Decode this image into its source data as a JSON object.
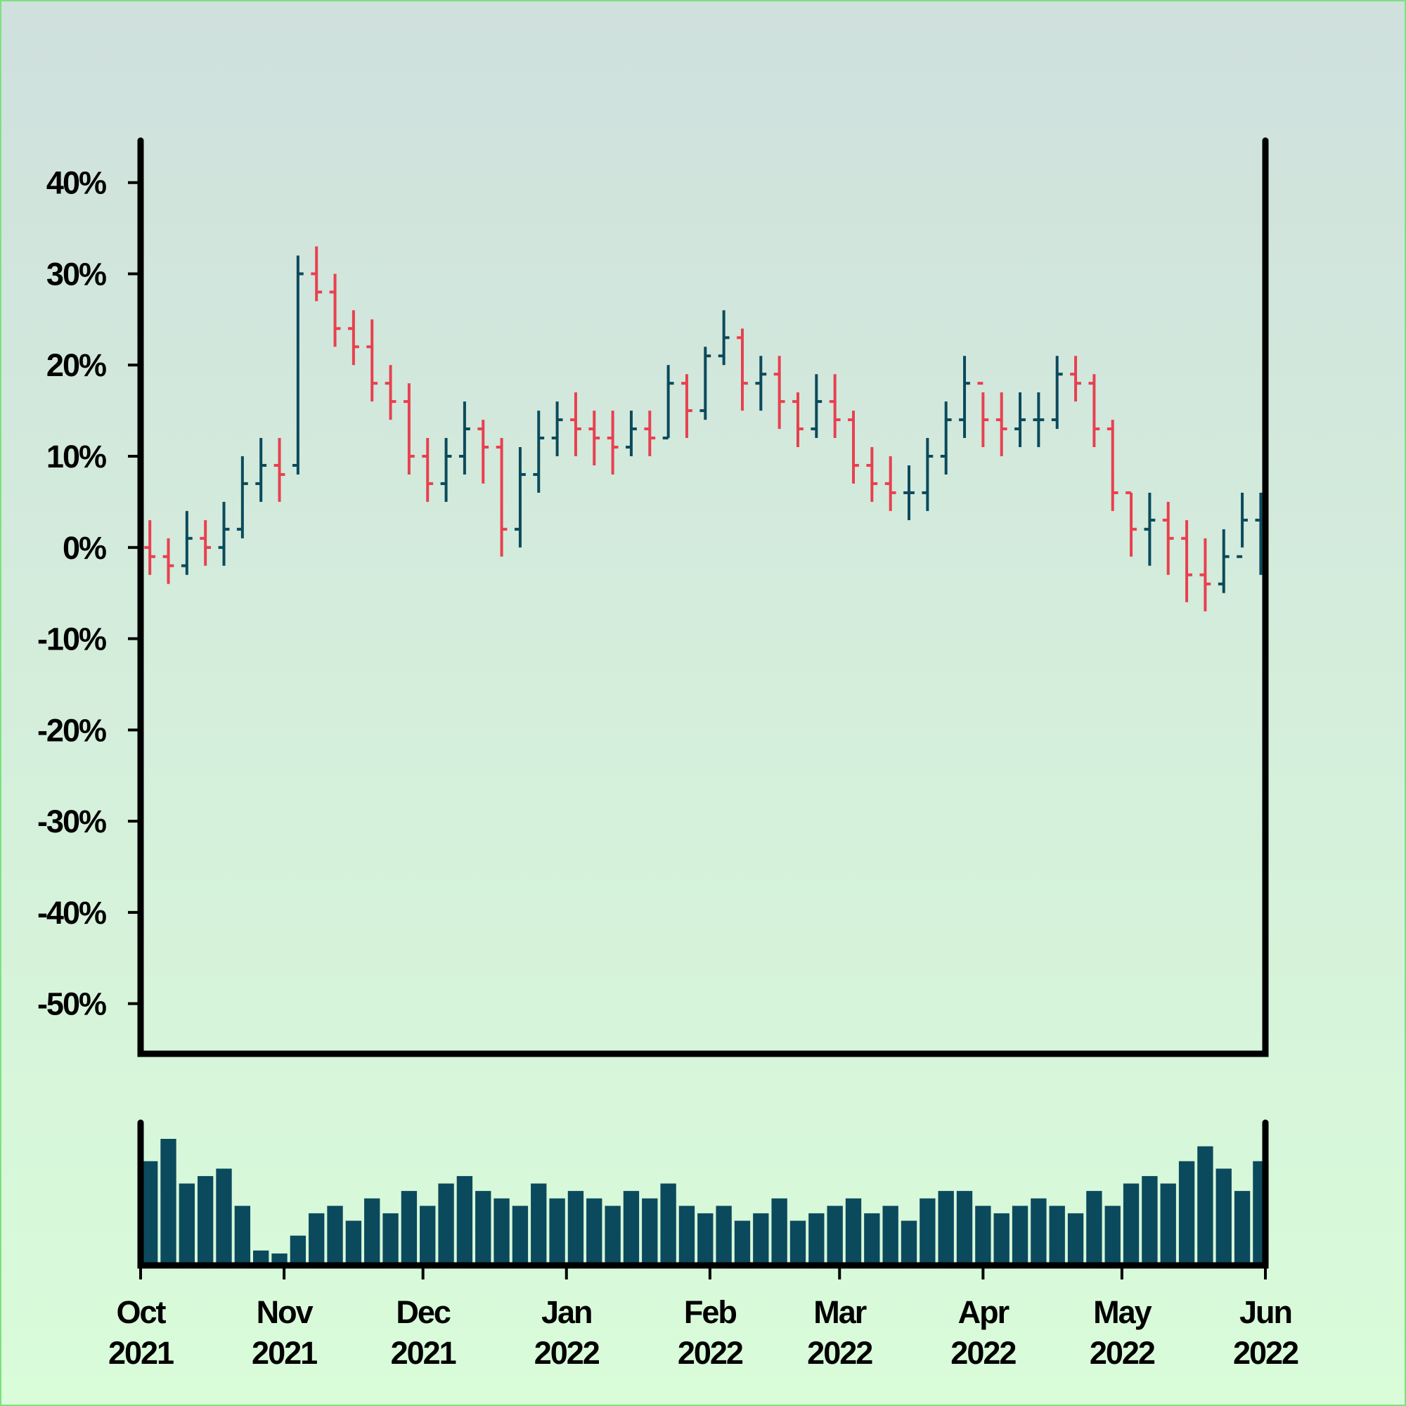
{
  "chart_data": {
    "type": "ohlc",
    "x": [
      "2021-10-01",
      "2021-10-05",
      "2021-10-09",
      "2021-10-13",
      "2021-10-17",
      "2021-10-21",
      "2021-10-25",
      "2021-10-29",
      "2021-11-02",
      "2021-11-06",
      "2021-11-10",
      "2021-11-14",
      "2021-11-18",
      "2021-11-22",
      "2021-11-26",
      "2021-11-30",
      "2021-12-04",
      "2021-12-08",
      "2021-12-12",
      "2021-12-16",
      "2021-12-20",
      "2021-12-24",
      "2021-12-28",
      "2022-01-01",
      "2022-01-05",
      "2022-01-09",
      "2022-01-13",
      "2022-01-17",
      "2022-01-21",
      "2022-01-25",
      "2022-01-29",
      "2022-02-02",
      "2022-02-06",
      "2022-02-10",
      "2022-02-14",
      "2022-02-18",
      "2022-02-22",
      "2022-02-26",
      "2022-03-02",
      "2022-03-06",
      "2022-03-10",
      "2022-03-14",
      "2022-03-18",
      "2022-03-22",
      "2022-03-26",
      "2022-03-30",
      "2022-04-03",
      "2022-04-07",
      "2022-04-11",
      "2022-04-15",
      "2022-04-19",
      "2022-04-23",
      "2022-04-27",
      "2022-05-01",
      "2022-05-05",
      "2022-05-09",
      "2022-05-13",
      "2022-05-17",
      "2022-05-21",
      "2022-05-25",
      "2022-05-29"
    ],
    "open": [
      0,
      -1,
      -2,
      1,
      0,
      2,
      7,
      9,
      9,
      30,
      28,
      24,
      22,
      18,
      16,
      10,
      7,
      10,
      13,
      11,
      2,
      8,
      12,
      14,
      13,
      12,
      11,
      13,
      12,
      18,
      15,
      21,
      23,
      18,
      19,
      16,
      13,
      16,
      14,
      9,
      7,
      6,
      6,
      10,
      14,
      18,
      14,
      13,
      14,
      14,
      19,
      18,
      13,
      6,
      2,
      3,
      1,
      -3,
      -4,
      -1,
      3
    ],
    "close": [
      -1,
      -2,
      1,
      0,
      2,
      7,
      9,
      8,
      30,
      28,
      24,
      22,
      18,
      16,
      10,
      7,
      10,
      13,
      11,
      2,
      8,
      12,
      14,
      13,
      12,
      11,
      13,
      12,
      18,
      15,
      21,
      23,
      18,
      19,
      16,
      13,
      16,
      14,
      9,
      7,
      6,
      6,
      10,
      14,
      18,
      14,
      13,
      14,
      14,
      19,
      18,
      13,
      6,
      2,
      3,
      1,
      -3,
      -4,
      -1,
      3,
      3
    ],
    "high": [
      3,
      1,
      4,
      3,
      5,
      10,
      12,
      12,
      32,
      33,
      30,
      26,
      25,
      20,
      18,
      12,
      12,
      16,
      14,
      12,
      11,
      15,
      16,
      17,
      15,
      15,
      15,
      15,
      20,
      19,
      22,
      26,
      24,
      21,
      21,
      17,
      19,
      19,
      15,
      11,
      10,
      9,
      12,
      16,
      21,
      17,
      17,
      17,
      17,
      21,
      21,
      19,
      14,
      6,
      6,
      5,
      3,
      1,
      2,
      6,
      6
    ],
    "low": [
      -3,
      -4,
      -3,
      -2,
      -2,
      1,
      5,
      5,
      8,
      27,
      22,
      20,
      16,
      14,
      8,
      5,
      5,
      8,
      7,
      -1,
      0,
      6,
      10,
      10,
      9,
      8,
      10,
      10,
      12,
      12,
      14,
      20,
      15,
      15,
      13,
      11,
      12,
      12,
      7,
      5,
      4,
      3,
      4,
      8,
      12,
      11,
      10,
      11,
      11,
      13,
      16,
      11,
      4,
      -1,
      -2,
      -3,
      -6,
      -7,
      -5,
      0,
      -3
    ],
    "volume": [
      70,
      85,
      55,
      60,
      65,
      40,
      10,
      8,
      20,
      35,
      40,
      30,
      45,
      35,
      50,
      40,
      55,
      60,
      50,
      45,
      40,
      55,
      45,
      50,
      45,
      40,
      50,
      45,
      55,
      40,
      35,
      40,
      30,
      35,
      45,
      30,
      35,
      40,
      45,
      35,
      40,
      30,
      45,
      50,
      50,
      40,
      35,
      40,
      45,
      40,
      35,
      50,
      40,
      55,
      60,
      55,
      70,
      80,
      65,
      50,
      70
    ],
    "up_color": "#0b4a5c",
    "down_color": "#e8404f",
    "volume_color": "#0b4a5c",
    "xlim": [
      "2021-10-01",
      "2022-06-01"
    ],
    "xticks": [
      {
        "value": "2021-10-01",
        "label": "Oct 2021"
      },
      {
        "value": "2021-11-01",
        "label": "Nov 2021"
      },
      {
        "value": "2021-12-01",
        "label": "Dec 2021"
      },
      {
        "value": "2022-01-01",
        "label": "Jan 2022"
      },
      {
        "value": "2022-02-01",
        "label": "Feb 2022"
      },
      {
        "value": "2022-03-01",
        "label": "Mar 2022"
      },
      {
        "value": "2022-04-01",
        "label": "Apr 2022"
      },
      {
        "value": "2022-05-01",
        "label": "May 2022"
      },
      {
        "value": "2022-06-01",
        "label": "Jun 2022"
      }
    ],
    "ylim": [
      -55.5,
      44.6
    ],
    "yticks": [
      {
        "value": 40,
        "label": "40%"
      },
      {
        "value": 30,
        "label": "30%"
      },
      {
        "value": 20,
        "label": "20%"
      },
      {
        "value": 10,
        "label": "10%"
      },
      {
        "value": 0,
        "label": "0%"
      },
      {
        "value": -10,
        "label": "-10%"
      },
      {
        "value": -20,
        "label": "-20%"
      },
      {
        "value": -30,
        "label": "-30%"
      },
      {
        "value": -40,
        "label": "-40%"
      },
      {
        "value": -50,
        "label": "-50%"
      }
    ]
  }
}
